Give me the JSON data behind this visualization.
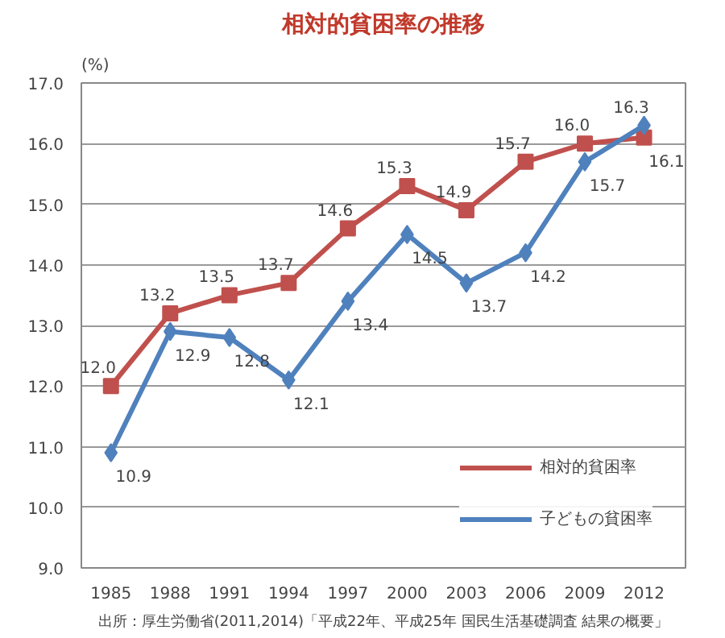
{
  "chart_data": {
    "type": "line",
    "title": "相対的貧困率の推移",
    "ylabel": "(%)",
    "categories": [
      "1985",
      "1988",
      "1991",
      "1994",
      "1997",
      "2000",
      "2003",
      "2006",
      "2009",
      "2012"
    ],
    "series": [
      {
        "name": "相対的貧困率",
        "color": "#c0504d",
        "marker": "square",
        "values": [
          12.0,
          13.2,
          13.5,
          13.7,
          14.6,
          15.3,
          14.9,
          15.7,
          16.0,
          16.1
        ],
        "value_labels": [
          "12.0",
          "13.2",
          "13.5",
          "13.7",
          "14.6",
          "15.3",
          "14.9",
          "15.7",
          "16.0",
          "16.1"
        ]
      },
      {
        "name": "子どもの貧困率",
        "color": "#4f81bd",
        "marker": "diamond",
        "values": [
          10.9,
          12.9,
          12.8,
          12.1,
          13.4,
          14.5,
          13.7,
          14.2,
          15.7,
          16.3
        ],
        "value_labels": [
          "10.9",
          "12.9",
          "12.8",
          "12.1",
          "13.4",
          "14.5",
          "13.7",
          "14.2",
          "15.7",
          "16.3"
        ]
      }
    ],
    "ylim": [
      9,
      17
    ],
    "yticks": [
      {
        "value": 9,
        "label": "9.0"
      },
      {
        "value": 10,
        "label": "10.0"
      },
      {
        "value": 11,
        "label": "11.0"
      },
      {
        "value": 12,
        "label": "12.0"
      },
      {
        "value": 13,
        "label": "13.0"
      },
      {
        "value": 14,
        "label": "14.0"
      },
      {
        "value": 15,
        "label": "15.0"
      },
      {
        "value": 16,
        "label": "16.0"
      },
      {
        "value": 17,
        "label": "17.0"
      }
    ],
    "grid": "y",
    "legend": "bottom right",
    "line_style": "solid",
    "annotations": [
      "出所：厚生労働省(2011,2014)「平成22年、平成25年 国民生活基礎調査 結果の概要」"
    ]
  }
}
